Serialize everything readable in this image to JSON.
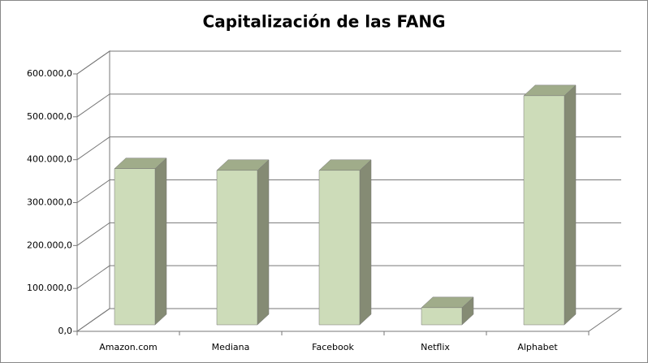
{
  "chart_data": {
    "type": "bar3d",
    "title": "Capitalización de las FANG",
    "categories": [
      "Amazon.com",
      "Mediana",
      "Facebook",
      "Netflix",
      "Alphabet"
    ],
    "values": [
      364000,
      360000,
      360000,
      40000,
      534000
    ],
    "color": "#cddcb9",
    "ylim": [
      0,
      600000
    ],
    "yticks": [
      {
        "value": 0,
        "label": "0,0"
      },
      {
        "value": 100000,
        "label": "100.000,0"
      },
      {
        "value": 200000,
        "label": "200.000,0"
      },
      {
        "value": 300000,
        "label": "300.000,0"
      },
      {
        "value": 400000,
        "label": "400.000,0"
      },
      {
        "value": 500000,
        "label": "500.000,0"
      },
      {
        "value": 600000,
        "label": "600.000,0"
      }
    ],
    "grid": true
  }
}
